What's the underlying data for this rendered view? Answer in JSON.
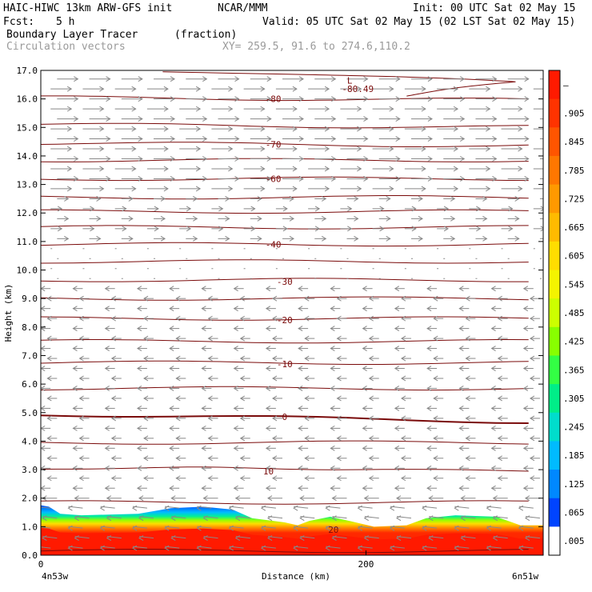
{
  "header": {
    "model": "HAIC-HIWC 13km ARW-GFS init",
    "org": "NCAR/MMM",
    "init": "Init: 00 UTC Sat 02 May 15",
    "fcst_label": "Fcst:",
    "fcst_value": "5 h",
    "valid": "Valid: 05 UTC Sat 02 May 15 (02 LST Sat 02 May 15)",
    "field": "Boundary Layer Tracer",
    "units": "(fraction)",
    "vectors": "Circulation vectors",
    "xy": "XY= 259.5, 91.6 to 274.6,110.2"
  },
  "chart_data": {
    "type": "cross-section",
    "ylabel": "Height (km)",
    "xlabel": "Distance (km)",
    "ylim": [
      0,
      17
    ],
    "xlim": [
      0,
      309
    ],
    "yticks": [
      "0.0",
      "1.0",
      "2.0",
      "3.0",
      "4.0",
      "5.0",
      "6.0",
      "7.0",
      "8.0",
      "9.0",
      "10.0",
      "11.0",
      "12.0",
      "13.0",
      "14.0",
      "15.0",
      "16.0",
      "17.0"
    ],
    "xticks": [
      {
        "value": 0,
        "label": "0"
      },
      {
        "value": 200,
        "label": "200"
      }
    ],
    "x_end_labels": {
      "left": "4n53w",
      "right": "6n51w"
    },
    "contour_labels": [
      {
        "x": 190,
        "y": 16.65,
        "text": "L"
      },
      {
        "x": 195,
        "y": 16.35,
        "text": "-80.49"
      },
      {
        "x": 143,
        "y": 16.0,
        "text": "-80"
      },
      {
        "x": 143,
        "y": 14.4,
        "text": "-70"
      },
      {
        "x": 143,
        "y": 13.2,
        "text": "-60"
      },
      {
        "x": 143,
        "y": 10.9,
        "text": "-40"
      },
      {
        "x": 150,
        "y": 9.6,
        "text": "-30"
      },
      {
        "x": 150,
        "y": 8.25,
        "text": "-20"
      },
      {
        "x": 150,
        "y": 6.7,
        "text": "-10"
      },
      {
        "x": 150,
        "y": 4.85,
        "text": "0"
      },
      {
        "x": 140,
        "y": 2.95,
        "text": "10"
      },
      {
        "x": 180,
        "y": 0.9,
        "text": "20"
      }
    ],
    "colorbar": {
      "labels": [
        "–",
        ".905",
        ".845",
        ".785",
        ".725",
        ".665",
        ".605",
        ".545",
        ".485",
        ".425",
        ".365",
        ".305",
        ".245",
        ".185",
        ".125",
        ".065",
        ".005"
      ],
      "colors": [
        "#ff1a00",
        "#ff3300",
        "#ff5500",
        "#ff7700",
        "#ff9900",
        "#ffbb00",
        "#ffdd00",
        "#f4f400",
        "#ccff00",
        "#88ff00",
        "#33ff44",
        "#00ee88",
        "#00ddcc",
        "#00bbff",
        "#0088ff",
        "#0044ff",
        "#ffffff"
      ]
    },
    "boundary_layer_top_km": [
      [
        0,
        1.75
      ],
      [
        5,
        1.7
      ],
      [
        12,
        1.45
      ],
      [
        25,
        1.4
      ],
      [
        60,
        1.45
      ],
      [
        80,
        1.65
      ],
      [
        100,
        1.7
      ],
      [
        118,
        1.6
      ],
      [
        130,
        1.3
      ],
      [
        150,
        1.15
      ],
      [
        158,
        1.05
      ],
      [
        165,
        1.2
      ],
      [
        178,
        1.35
      ],
      [
        190,
        1.2
      ],
      [
        205,
        1.0
      ],
      [
        225,
        1.05
      ],
      [
        237,
        1.3
      ],
      [
        255,
        1.4
      ],
      [
        280,
        1.35
      ],
      [
        295,
        1.05
      ],
      [
        309,
        1.05
      ]
    ]
  }
}
